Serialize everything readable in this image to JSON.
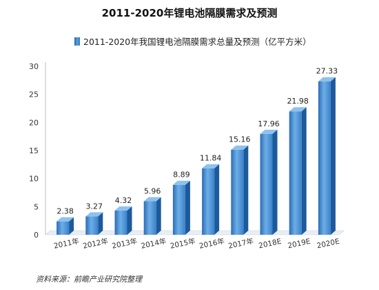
{
  "chart_data": {
    "type": "bar",
    "title": "2011-2020年锂电池隔膜需求及预测",
    "legend": [
      "2011-2020年我国锂电池隔膜需求总量及预测（亿平方米）"
    ],
    "legend_position": "top",
    "categories": [
      "2011年",
      "2012年",
      "2013年",
      "2014年",
      "2015年",
      "2016年",
      "2017年",
      "2018E",
      "2019E",
      "2020E"
    ],
    "series": [
      {
        "name": "2011-2020年我国锂电池隔膜需求总量及预测（亿平方米）",
        "values": [
          2.38,
          3.27,
          4.32,
          5.96,
          8.89,
          11.84,
          15.16,
          17.96,
          21.98,
          27.33
        ]
      }
    ],
    "ylim": [
      0,
      30
    ],
    "yticks": [
      0,
      5,
      10,
      15,
      20,
      25,
      30
    ],
    "grid": false,
    "colors": {
      "bar_front": "#4a8fd4",
      "bar_side": "#1d5a9c",
      "bar_top": "#8fc1ee"
    }
  },
  "source": "资料来源：前瞻产业研究院整理"
}
